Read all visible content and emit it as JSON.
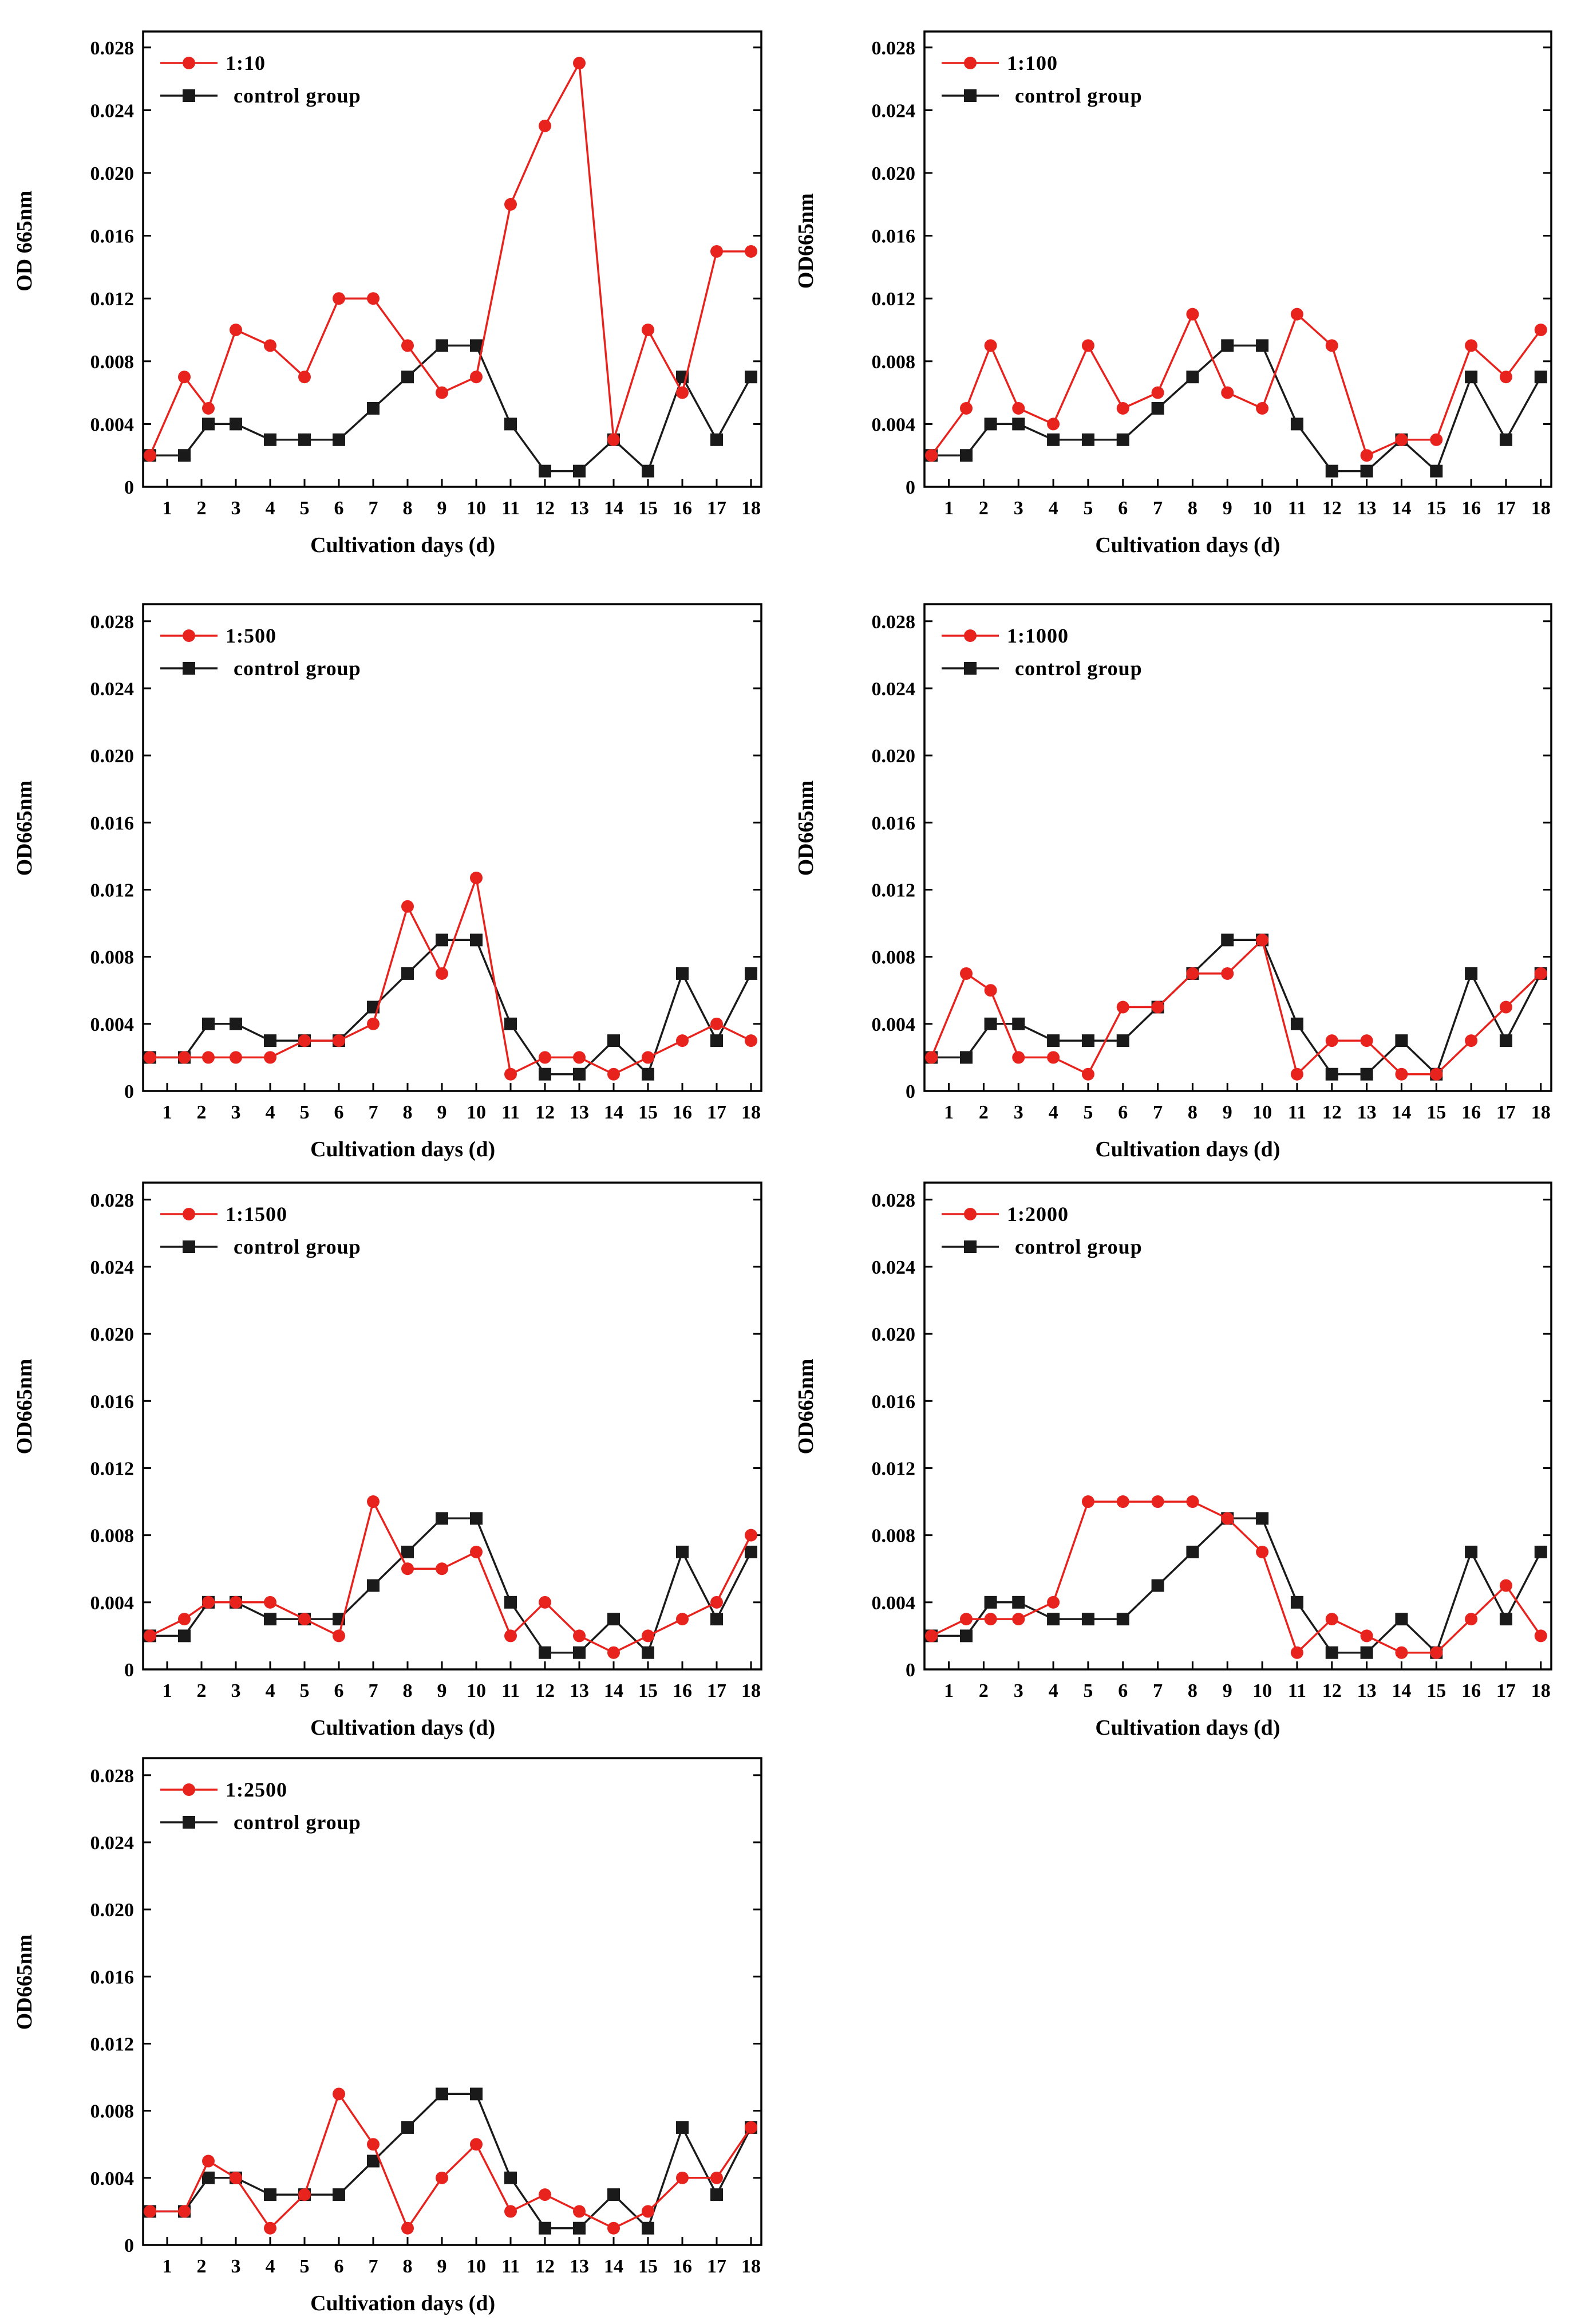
{
  "chart_data": [
    {
      "type": "line",
      "xlabel": "Cultivation days (d)",
      "ylabel": "OD 665nm",
      "x": [
        0.5,
        1.5,
        2.2,
        3,
        4,
        5,
        6,
        7,
        8,
        9,
        10,
        11,
        12,
        13,
        14,
        15,
        16,
        17,
        18
      ],
      "xticks": [
        "1",
        "2",
        "3",
        "4",
        "5",
        "6",
        "7",
        "8",
        "9",
        "10",
        "11",
        "12",
        "13",
        "14",
        "15",
        "16",
        "17",
        "18"
      ],
      "yticks": [
        "0",
        "0.004",
        "0.008",
        "0.012",
        "0.016",
        "0.020",
        "0.024",
        "0.028"
      ],
      "xlim": [
        0.3,
        18.3
      ],
      "ylim": [
        0,
        0.028
      ],
      "legend": "top-left",
      "series": [
        {
          "name": "1:10",
          "color": "#e8231e",
          "marker": "circle",
          "values": [
            0.002,
            0.007,
            0.005,
            0.01,
            0.009,
            0.007,
            0.012,
            0.012,
            0.009,
            0.006,
            0.007,
            0.018,
            0.023,
            0.027,
            0.003,
            0.01,
            0.006,
            0.015,
            0.015
          ]
        },
        {
          "name": "control group",
          "color": "#1a1a1a",
          "marker": "square",
          "values": [
            0.002,
            0.002,
            0.004,
            0.004,
            0.003,
            0.003,
            0.003,
            0.005,
            0.007,
            0.009,
            0.009,
            0.004,
            0.001,
            0.001,
            0.003,
            0.001,
            0.007,
            0.003,
            0.007
          ]
        }
      ]
    },
    {
      "type": "line",
      "xlabel": "Cultivation days (d)",
      "ylabel": "OD665nm",
      "x": [
        0.5,
        1.5,
        2.2,
        3,
        4,
        5,
        6,
        7,
        8,
        9,
        10,
        11,
        12,
        13,
        14,
        15,
        16,
        17,
        18
      ],
      "xticks": [
        "1",
        "2",
        "3",
        "4",
        "5",
        "6",
        "7",
        "8",
        "9",
        "10",
        "11",
        "12",
        "13",
        "14",
        "15",
        "16",
        "17",
        "18"
      ],
      "yticks": [
        "0",
        "0.004",
        "0.008",
        "0.012",
        "0.016",
        "0.020",
        "0.024",
        "0.028"
      ],
      "xlim": [
        0.3,
        18.3
      ],
      "ylim": [
        0,
        0.028
      ],
      "legend": "top-left",
      "series": [
        {
          "name": "1:100",
          "color": "#e8231e",
          "marker": "circle",
          "values": [
            0.002,
            0.005,
            0.009,
            0.005,
            0.004,
            0.009,
            0.005,
            0.006,
            0.011,
            0.006,
            0.005,
            0.011,
            0.009,
            0.002,
            0.003,
            0.003,
            0.009,
            0.007,
            0.01
          ]
        },
        {
          "name": "control group",
          "color": "#1a1a1a",
          "marker": "square",
          "values": [
            0.002,
            0.002,
            0.004,
            0.004,
            0.003,
            0.003,
            0.003,
            0.005,
            0.007,
            0.009,
            0.009,
            0.004,
            0.001,
            0.001,
            0.003,
            0.001,
            0.007,
            0.003,
            0.007
          ]
        }
      ]
    },
    {
      "type": "line",
      "xlabel": "Cultivation days (d)",
      "ylabel": "OD665nm",
      "x": [
        0.5,
        1.5,
        2.2,
        3,
        4,
        5,
        6,
        7,
        8,
        9,
        10,
        11,
        12,
        13,
        14,
        15,
        16,
        17,
        18
      ],
      "xticks": [
        "1",
        "2",
        "3",
        "4",
        "5",
        "6",
        "7",
        "8",
        "9",
        "10",
        "11",
        "12",
        "13",
        "14",
        "15",
        "16",
        "17",
        "18"
      ],
      "yticks": [
        "0",
        "0.004",
        "0.008",
        "0.012",
        "0.016",
        "0.020",
        "0.024",
        "0.028"
      ],
      "xlim": [
        0.3,
        18.3
      ],
      "ylim": [
        0,
        0.028
      ],
      "legend": "top-left",
      "series": [
        {
          "name": "1:500",
          "color": "#e8231e",
          "marker": "circle",
          "values": [
            0.002,
            0.002,
            0.002,
            0.002,
            0.002,
            0.003,
            0.003,
            0.004,
            0.011,
            0.007,
            0.0127,
            0.001,
            0.002,
            0.002,
            0.001,
            0.002,
            0.003,
            0.004,
            0.003
          ]
        },
        {
          "name": "control group",
          "color": "#1a1a1a",
          "marker": "square",
          "values": [
            0.002,
            0.002,
            0.004,
            0.004,
            0.003,
            0.003,
            0.003,
            0.005,
            0.007,
            0.009,
            0.009,
            0.004,
            0.001,
            0.001,
            0.003,
            0.001,
            0.007,
            0.003,
            0.007
          ]
        }
      ]
    },
    {
      "type": "line",
      "xlabel": "Cultivation days (d)",
      "ylabel": "OD665nm",
      "x": [
        0.5,
        1.5,
        2.2,
        3,
        4,
        5,
        6,
        7,
        8,
        9,
        10,
        11,
        12,
        13,
        14,
        15,
        16,
        17,
        18
      ],
      "xticks": [
        "1",
        "2",
        "3",
        "4",
        "5",
        "6",
        "7",
        "8",
        "9",
        "10",
        "11",
        "12",
        "13",
        "14",
        "15",
        "16",
        "17",
        "18"
      ],
      "yticks": [
        "0",
        "0.004",
        "0.008",
        "0.012",
        "0.016",
        "0.020",
        "0.024",
        "0.028"
      ],
      "xlim": [
        0.3,
        18.3
      ],
      "ylim": [
        0,
        0.028
      ],
      "legend": "top-left",
      "series": [
        {
          "name": "1:1000",
          "color": "#e8231e",
          "marker": "circle",
          "values": [
            0.002,
            0.007,
            0.006,
            0.002,
            0.002,
            0.001,
            0.005,
            0.005,
            0.007,
            0.007,
            0.009,
            0.001,
            0.003,
            0.003,
            0.001,
            0.001,
            0.003,
            0.005,
            0.007
          ]
        },
        {
          "name": "control group",
          "color": "#1a1a1a",
          "marker": "square",
          "values": [
            0.002,
            0.002,
            0.004,
            0.004,
            0.003,
            0.003,
            0.003,
            0.005,
            0.007,
            0.009,
            0.009,
            0.004,
            0.001,
            0.001,
            0.003,
            0.001,
            0.007,
            0.003,
            0.007
          ]
        }
      ]
    },
    {
      "type": "line",
      "xlabel": "Cultivation days (d)",
      "ylabel": "OD665nm",
      "x": [
        0.5,
        1.5,
        2.2,
        3,
        4,
        5,
        6,
        7,
        8,
        9,
        10,
        11,
        12,
        13,
        14,
        15,
        16,
        17,
        18
      ],
      "xticks": [
        "1",
        "2",
        "3",
        "4",
        "5",
        "6",
        "7",
        "8",
        "9",
        "10",
        "11",
        "12",
        "13",
        "14",
        "15",
        "16",
        "17",
        "18"
      ],
      "yticks": [
        "0",
        "0.004",
        "0.008",
        "0.012",
        "0.016",
        "0.020",
        "0.024",
        "0.028"
      ],
      "xlim": [
        0.3,
        18.3
      ],
      "ylim": [
        0,
        0.028
      ],
      "legend": "top-left",
      "series": [
        {
          "name": "1:1500",
          "color": "#e8231e",
          "marker": "circle",
          "values": [
            0.002,
            0.003,
            0.004,
            0.004,
            0.004,
            0.003,
            0.002,
            0.01,
            0.006,
            0.006,
            0.007,
            0.002,
            0.004,
            0.002,
            0.001,
            0.002,
            0.003,
            0.004,
            0.008
          ]
        },
        {
          "name": "control group",
          "color": "#1a1a1a",
          "marker": "square",
          "values": [
            0.002,
            0.002,
            0.004,
            0.004,
            0.003,
            0.003,
            0.003,
            0.005,
            0.007,
            0.009,
            0.009,
            0.004,
            0.001,
            0.001,
            0.003,
            0.001,
            0.007,
            0.003,
            0.007
          ]
        }
      ]
    },
    {
      "type": "line",
      "xlabel": "Cultivation days (d)",
      "ylabel": "OD665nm",
      "x": [
        0.5,
        1.5,
        2.2,
        3,
        4,
        5,
        6,
        7,
        8,
        9,
        10,
        11,
        12,
        13,
        14,
        15,
        16,
        17,
        18
      ],
      "xticks": [
        "1",
        "2",
        "3",
        "4",
        "5",
        "6",
        "7",
        "8",
        "9",
        "10",
        "11",
        "12",
        "13",
        "14",
        "15",
        "16",
        "17",
        "18"
      ],
      "yticks": [
        "0",
        "0.004",
        "0.008",
        "0.012",
        "0.016",
        "0.020",
        "0.024",
        "0.028"
      ],
      "xlim": [
        0.3,
        18.3
      ],
      "ylim": [
        0,
        0.028
      ],
      "legend": "top-left",
      "series": [
        {
          "name": "1:2000",
          "color": "#e8231e",
          "marker": "circle",
          "values": [
            0.002,
            0.003,
            0.003,
            0.003,
            0.004,
            0.01,
            0.01,
            0.01,
            0.01,
            0.009,
            0.007,
            0.001,
            0.003,
            0.002,
            0.001,
            0.001,
            0.003,
            0.005,
            0.002
          ]
        },
        {
          "name": "control group",
          "color": "#1a1a1a",
          "marker": "square",
          "values": [
            0.002,
            0.002,
            0.004,
            0.004,
            0.003,
            0.003,
            0.003,
            0.005,
            0.007,
            0.009,
            0.009,
            0.004,
            0.001,
            0.001,
            0.003,
            0.001,
            0.007,
            0.003,
            0.007
          ]
        }
      ]
    },
    {
      "type": "line",
      "xlabel": "Cultivation days (d)",
      "ylabel": "OD665nm",
      "x": [
        0.5,
        1.5,
        2.2,
        3,
        4,
        5,
        6,
        7,
        8,
        9,
        10,
        11,
        12,
        13,
        14,
        15,
        16,
        17,
        18
      ],
      "xticks": [
        "1",
        "2",
        "3",
        "4",
        "5",
        "6",
        "7",
        "8",
        "9",
        "10",
        "11",
        "12",
        "13",
        "14",
        "15",
        "16",
        "17",
        "18"
      ],
      "yticks": [
        "0",
        "0.004",
        "0.008",
        "0.012",
        "0.016",
        "0.020",
        "0.024",
        "0.028"
      ],
      "xlim": [
        0.3,
        18.3
      ],
      "ylim": [
        0,
        0.028
      ],
      "legend": "top-left",
      "series": [
        {
          "name": "1:2500",
          "color": "#e8231e",
          "marker": "circle",
          "values": [
            0.002,
            0.002,
            0.005,
            0.004,
            0.001,
            0.003,
            0.009,
            0.006,
            0.001,
            0.004,
            0.006,
            0.002,
            0.003,
            0.002,
            0.001,
            0.002,
            0.004,
            0.004,
            0.007
          ]
        },
        {
          "name": "control group",
          "color": "#1a1a1a",
          "marker": "square",
          "values": [
            0.002,
            0.002,
            0.004,
            0.004,
            0.003,
            0.003,
            0.003,
            0.005,
            0.007,
            0.009,
            0.009,
            0.004,
            0.001,
            0.001,
            0.003,
            0.001,
            0.007,
            0.003,
            0.007
          ]
        }
      ]
    }
  ]
}
